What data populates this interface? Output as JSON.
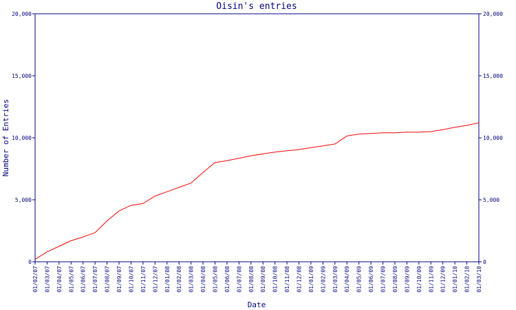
{
  "chart_data": {
    "type": "line",
    "title": "Oisin's entries",
    "xlabel": "Date",
    "ylabel": "Number of Entries",
    "ylim": [
      0,
      20000
    ],
    "yticks": [
      "0",
      "5,000",
      "10,000",
      "15,000",
      "20,000"
    ],
    "ytick_values": [
      0,
      5000,
      10000,
      15000,
      20000
    ],
    "categories": [
      "01/02/07",
      "01/03/07",
      "01/04/07",
      "01/05/07",
      "01/06/07",
      "01/07/07",
      "01/08/07",
      "01/09/07",
      "01/10/07",
      "01/11/07",
      "01/12/07",
      "01/01/08",
      "01/02/08",
      "01/03/08",
      "01/04/08",
      "01/05/08",
      "01/06/08",
      "01/07/08",
      "01/08/08",
      "01/09/08",
      "01/10/08",
      "01/11/08",
      "01/12/08",
      "01/01/09",
      "01/02/09",
      "01/03/09",
      "01/04/09",
      "01/05/09",
      "01/06/09",
      "01/07/09",
      "01/08/09",
      "01/09/09",
      "01/10/09",
      "01/11/09",
      "01/12/09",
      "01/01/10",
      "01/02/10",
      "01/03/10"
    ],
    "values": [
      200,
      800,
      1250,
      1700,
      2000,
      2350,
      3300,
      4100,
      4550,
      4700,
      5300,
      5650,
      6000,
      6350,
      7200,
      8000,
      8150,
      8350,
      8550,
      8700,
      8850,
      8950,
      9050,
      9200,
      9350,
      9500,
      10150,
      10300,
      10350,
      10400,
      10400,
      10450,
      10450,
      10500,
      10650,
      10850,
      11000,
      11200
    ],
    "grid": false,
    "line_color": "#ff0000",
    "axis_color": "#000080"
  }
}
